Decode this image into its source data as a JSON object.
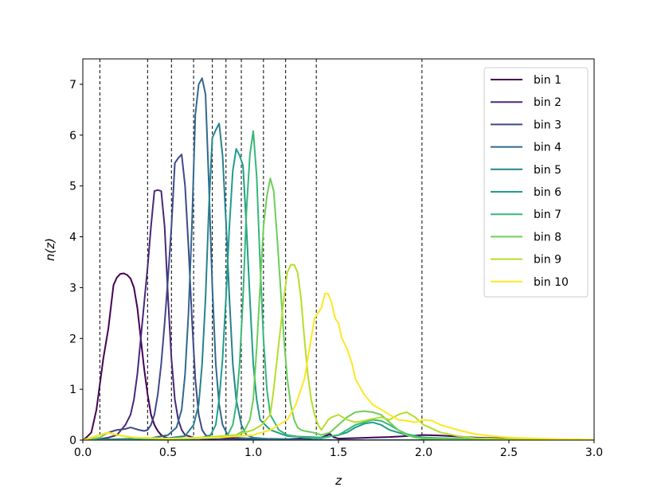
{
  "chart_data": {
    "type": "line",
    "xlabel": "z",
    "ylabel": "n(z)",
    "xlim": [
      0,
      3
    ],
    "ylim": [
      0,
      7.5
    ],
    "xticks": [
      "0.0",
      "0.5",
      "1.0",
      "1.5",
      "2.0",
      "2.5",
      "3.0"
    ],
    "yticks": [
      "0",
      "1",
      "2",
      "3",
      "4",
      "5",
      "6",
      "7"
    ],
    "grid": false,
    "legend_position": "top-right",
    "bin_edges": [
      0.1,
      0.38,
      0.52,
      0.65,
      0.76,
      0.84,
      0.93,
      1.06,
      1.19,
      1.37,
      1.99
    ],
    "series": [
      {
        "name": "bin 1",
        "color": "#440154",
        "x": [
          0.0,
          0.02,
          0.05,
          0.08,
          0.1,
          0.12,
          0.15,
          0.18,
          0.2,
          0.22,
          0.24,
          0.26,
          0.28,
          0.3,
          0.32,
          0.34,
          0.36,
          0.38,
          0.4,
          0.42,
          0.44,
          0.46,
          0.48,
          0.5,
          0.55,
          0.6,
          0.7,
          0.8,
          1.0,
          1.2,
          1.4,
          1.45,
          1.47,
          1.5,
          1.6,
          1.7,
          1.8,
          1.9,
          2.0,
          2.1,
          2.2,
          2.3,
          2.5,
          2.7,
          2.9,
          3.0
        ],
        "y": [
          0.0,
          0.05,
          0.15,
          0.6,
          1.1,
          1.6,
          2.2,
          3.05,
          3.2,
          3.27,
          3.28,
          3.25,
          3.18,
          3.0,
          2.6,
          2.0,
          1.4,
          0.9,
          0.5,
          0.3,
          0.18,
          0.1,
          0.06,
          0.04,
          0.02,
          0.02,
          0.03,
          0.05,
          0.03,
          0.02,
          0.05,
          0.12,
          0.06,
          0.03,
          0.04,
          0.05,
          0.06,
          0.08,
          0.1,
          0.09,
          0.07,
          0.05,
          0.03,
          0.02,
          0.01,
          0.0
        ]
      },
      {
        "name": "bin 2",
        "color": "#482878",
        "x": [
          0.0,
          0.1,
          0.15,
          0.2,
          0.25,
          0.28,
          0.3,
          0.32,
          0.34,
          0.36,
          0.38,
          0.4,
          0.42,
          0.44,
          0.46,
          0.48,
          0.5,
          0.52,
          0.54,
          0.56,
          0.58,
          0.6,
          0.65,
          0.7,
          0.8,
          1.0,
          1.2,
          1.5,
          2.0,
          2.5,
          3.0
        ],
        "y": [
          0.0,
          0.02,
          0.05,
          0.1,
          0.3,
          0.5,
          0.8,
          1.3,
          2.0,
          2.7,
          3.4,
          4.2,
          4.9,
          4.92,
          4.9,
          4.2,
          2.8,
          1.6,
          0.8,
          0.4,
          0.2,
          0.1,
          0.05,
          0.02,
          0.01,
          0.01,
          0.0,
          0.0,
          0.0,
          0.0,
          0.0
        ]
      },
      {
        "name": "bin 3",
        "color": "#3e4989",
        "x": [
          0.0,
          0.1,
          0.15,
          0.2,
          0.25,
          0.28,
          0.3,
          0.33,
          0.36,
          0.38,
          0.4,
          0.42,
          0.44,
          0.46,
          0.48,
          0.5,
          0.52,
          0.54,
          0.56,
          0.58,
          0.6,
          0.62,
          0.64,
          0.66,
          0.68,
          0.7,
          0.72,
          0.75,
          0.8,
          0.9,
          1.0,
          1.5,
          2.0,
          3.0
        ],
        "y": [
          0.0,
          0.1,
          0.15,
          0.2,
          0.22,
          0.25,
          0.23,
          0.2,
          0.18,
          0.2,
          0.3,
          0.5,
          0.9,
          1.5,
          2.3,
          3.2,
          4.2,
          5.45,
          5.55,
          5.62,
          5.0,
          3.8,
          2.4,
          1.2,
          0.5,
          0.2,
          0.1,
          0.05,
          0.02,
          0.01,
          0.0,
          0.0,
          0.0,
          0.0
        ]
      },
      {
        "name": "bin 4",
        "color": "#31688e",
        "x": [
          0.0,
          0.2,
          0.4,
          0.5,
          0.55,
          0.58,
          0.6,
          0.62,
          0.64,
          0.66,
          0.68,
          0.7,
          0.72,
          0.74,
          0.76,
          0.78,
          0.8,
          0.82,
          0.85,
          0.9,
          1.0,
          1.5,
          2.0,
          3.0
        ],
        "y": [
          0.0,
          0.02,
          0.04,
          0.1,
          0.25,
          0.6,
          1.3,
          2.5,
          4.2,
          6.4,
          7.0,
          7.12,
          6.8,
          5.0,
          3.0,
          1.5,
          0.7,
          0.3,
          0.1,
          0.05,
          0.02,
          0.0,
          0.0,
          0.0
        ]
      },
      {
        "name": "bin 5",
        "color": "#26828e",
        "x": [
          0.0,
          0.3,
          0.5,
          0.6,
          0.65,
          0.68,
          0.7,
          0.72,
          0.74,
          0.76,
          0.78,
          0.8,
          0.82,
          0.84,
          0.86,
          0.88,
          0.9,
          0.93,
          0.96,
          1.0,
          1.1,
          1.5,
          2.0,
          3.0
        ],
        "y": [
          0.0,
          0.02,
          0.04,
          0.08,
          0.3,
          0.7,
          1.5,
          2.8,
          4.6,
          5.95,
          6.1,
          6.23,
          5.6,
          4.3,
          2.8,
          1.5,
          0.8,
          0.3,
          0.1,
          0.05,
          0.02,
          0.0,
          0.0,
          0.0
        ]
      },
      {
        "name": "bin 6",
        "color": "#1f9e89",
        "x": [
          0.0,
          0.5,
          0.7,
          0.75,
          0.78,
          0.8,
          0.82,
          0.84,
          0.86,
          0.88,
          0.9,
          0.92,
          0.94,
          0.96,
          0.98,
          1.0,
          1.02,
          1.04,
          1.1,
          1.2,
          1.4,
          1.5,
          1.55,
          1.6,
          1.65,
          1.7,
          1.75,
          1.8,
          1.9,
          2.0,
          2.2,
          2.5,
          3.0
        ],
        "y": [
          0.0,
          0.02,
          0.05,
          0.1,
          0.3,
          0.8,
          1.6,
          2.8,
          4.2,
          5.3,
          5.73,
          5.6,
          5.4,
          4.2,
          2.8,
          1.5,
          0.8,
          0.4,
          0.2,
          0.08,
          0.05,
          0.1,
          0.15,
          0.25,
          0.32,
          0.35,
          0.3,
          0.2,
          0.1,
          0.05,
          0.02,
          0.01,
          0.0
        ]
      },
      {
        "name": "bin 7",
        "color": "#35b779",
        "x": [
          0.0,
          0.6,
          0.8,
          0.85,
          0.88,
          0.9,
          0.92,
          0.94,
          0.96,
          0.98,
          1.0,
          1.02,
          1.04,
          1.06,
          1.08,
          1.1,
          1.15,
          1.2,
          1.3,
          1.4,
          1.5,
          1.55,
          1.6,
          1.65,
          1.7,
          1.75,
          1.8,
          1.85,
          1.9,
          2.0,
          2.2,
          2.5,
          3.0
        ],
        "y": [
          0.0,
          0.02,
          0.05,
          0.1,
          0.3,
          0.7,
          1.5,
          2.8,
          4.5,
          5.6,
          6.08,
          5.2,
          3.5,
          2.0,
          1.0,
          0.5,
          0.2,
          0.1,
          0.05,
          0.04,
          0.1,
          0.2,
          0.3,
          0.35,
          0.4,
          0.38,
          0.3,
          0.2,
          0.12,
          0.05,
          0.03,
          0.01,
          0.0
        ]
      },
      {
        "name": "bin 8",
        "color": "#6ece58",
        "x": [
          0.0,
          0.1,
          0.15,
          0.2,
          0.3,
          0.5,
          0.8,
          0.9,
          0.95,
          0.98,
          1.0,
          1.02,
          1.04,
          1.06,
          1.08,
          1.1,
          1.12,
          1.14,
          1.16,
          1.18,
          1.2,
          1.22,
          1.24,
          1.26,
          1.28,
          1.3,
          1.35,
          1.4,
          1.45,
          1.5,
          1.55,
          1.6,
          1.65,
          1.7,
          1.75,
          1.8,
          1.85,
          1.9,
          1.95,
          2.0,
          2.2,
          2.5,
          3.0
        ],
        "y": [
          0.0,
          0.05,
          0.15,
          0.1,
          0.05,
          0.03,
          0.05,
          0.1,
          0.2,
          0.4,
          0.8,
          1.8,
          3.0,
          4.2,
          4.8,
          5.15,
          4.9,
          4.0,
          3.0,
          2.0,
          1.2,
          0.7,
          0.4,
          0.25,
          0.2,
          0.18,
          0.15,
          0.1,
          0.15,
          0.3,
          0.45,
          0.55,
          0.57,
          0.55,
          0.5,
          0.35,
          0.2,
          0.1,
          0.05,
          0.03,
          0.02,
          0.01,
          0.0
        ]
      },
      {
        "name": "bin 9",
        "color": "#b5de2b",
        "x": [
          0.0,
          0.1,
          0.15,
          0.2,
          0.3,
          0.5,
          0.7,
          0.9,
          1.0,
          1.05,
          1.1,
          1.12,
          1.14,
          1.16,
          1.18,
          1.2,
          1.22,
          1.24,
          1.26,
          1.28,
          1.3,
          1.32,
          1.34,
          1.36,
          1.38,
          1.4,
          1.42,
          1.44,
          1.46,
          1.5,
          1.55,
          1.6,
          1.65,
          1.7,
          1.75,
          1.8,
          1.85,
          1.9,
          1.95,
          2.0,
          2.1,
          2.2,
          2.3,
          2.5,
          3.0
        ],
        "y": [
          0.0,
          0.1,
          0.15,
          0.1,
          0.05,
          0.03,
          0.05,
          0.1,
          0.2,
          0.3,
          0.5,
          1.0,
          1.6,
          2.2,
          2.8,
          3.3,
          3.45,
          3.45,
          3.3,
          2.8,
          2.0,
          1.3,
          0.8,
          0.5,
          0.3,
          0.2,
          0.3,
          0.4,
          0.45,
          0.5,
          0.4,
          0.35,
          0.38,
          0.42,
          0.45,
          0.4,
          0.5,
          0.55,
          0.45,
          0.3,
          0.15,
          0.08,
          0.04,
          0.02,
          0.0
        ]
      },
      {
        "name": "bin 10",
        "color": "#fde725",
        "x": [
          0.0,
          0.1,
          0.15,
          0.2,
          0.3,
          0.5,
          0.8,
          1.0,
          1.1,
          1.2,
          1.25,
          1.3,
          1.33,
          1.36,
          1.38,
          1.4,
          1.42,
          1.44,
          1.46,
          1.48,
          1.5,
          1.52,
          1.55,
          1.58,
          1.6,
          1.65,
          1.7,
          1.75,
          1.8,
          1.85,
          1.9,
          1.95,
          2.0,
          2.05,
          2.1,
          2.2,
          2.3,
          2.4,
          2.5,
          2.6,
          2.8,
          3.0
        ],
        "y": [
          0.0,
          0.1,
          0.15,
          0.1,
          0.05,
          0.03,
          0.05,
          0.1,
          0.2,
          0.4,
          0.7,
          1.2,
          1.8,
          2.4,
          2.5,
          2.6,
          2.88,
          2.88,
          2.7,
          2.4,
          2.3,
          2.0,
          1.8,
          1.5,
          1.2,
          0.9,
          0.7,
          0.6,
          0.5,
          0.4,
          0.38,
          0.35,
          0.4,
          0.38,
          0.3,
          0.2,
          0.12,
          0.08,
          0.05,
          0.04,
          0.02,
          0.01
        ]
      }
    ]
  }
}
